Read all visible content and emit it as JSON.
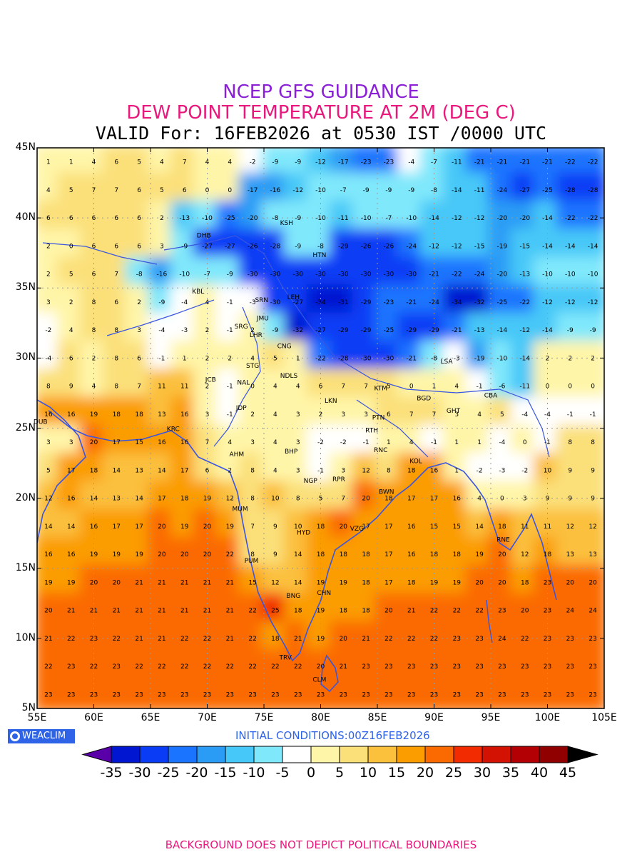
{
  "header": {
    "line1": "NCEP GFS GUIDANCE",
    "line2": "DEW POINT TEMPERATURE AT 2M (DEG C)",
    "line3": "VALID For: 16FEB2026 at 0530 IST /0000 UTC"
  },
  "axes": {
    "y_labels": [
      "45N",
      "40N",
      "35N",
      "30N",
      "25N",
      "20N",
      "15N",
      "10N",
      "5N"
    ],
    "x_labels": [
      "55E",
      "60E",
      "65E",
      "70E",
      "75E",
      "80E",
      "85E",
      "90E",
      "95E",
      "100E",
      "105E"
    ],
    "lon_range": [
      55,
      105
    ],
    "lat_range": [
      5,
      45
    ]
  },
  "footer": {
    "logo_text": "WEACLIM",
    "initial_conditions": "INITIAL CONDITIONS:00Z16FEB2026",
    "disclaimer": "BACKGROUND DOES NOT DEPICT POLITICAL BOUNDARIES"
  },
  "colorbar": {
    "labels": [
      "-35",
      "-30",
      "-25",
      "-20",
      "-15",
      "-10",
      "-5",
      "0",
      "5",
      "10",
      "15",
      "20",
      "25",
      "30",
      "35",
      "40",
      "45"
    ],
    "colors": [
      "#5a00a8",
      "#0016d0",
      "#0a3cf5",
      "#1a74ff",
      "#2a9cf5",
      "#46c8f8",
      "#80e8fb",
      "#ffffff",
      "#fff5a8",
      "#fbe07a",
      "#fbc03c",
      "#fb9c00",
      "#fb6a00",
      "#f22c00",
      "#d31204",
      "#b20004",
      "#900000",
      "#000000"
    ]
  },
  "color_scale": {
    "stops": [
      -35,
      -30,
      -25,
      -20,
      -15,
      -10,
      -5,
      0,
      5,
      10,
      15,
      20,
      25,
      30,
      35,
      40,
      45
    ]
  },
  "cities": [
    {
      "code": "KSH",
      "lon": 77.0,
      "lat": 39.5
    },
    {
      "code": "DHB",
      "lon": 69.7,
      "lat": 38.6
    },
    {
      "code": "HTN",
      "lon": 79.9,
      "lat": 37.2
    },
    {
      "code": "KBL",
      "lon": 69.2,
      "lat": 34.6
    },
    {
      "code": "SRN",
      "lon": 74.8,
      "lat": 34.0
    },
    {
      "code": "LEH",
      "lon": 77.6,
      "lat": 34.2
    },
    {
      "code": "JMU",
      "lon": 74.9,
      "lat": 32.7
    },
    {
      "code": "SRG",
      "lon": 73.0,
      "lat": 32.1
    },
    {
      "code": "LHR",
      "lon": 74.3,
      "lat": 31.5
    },
    {
      "code": "CNG",
      "lon": 76.8,
      "lat": 30.7
    },
    {
      "code": "STG",
      "lon": 74.0,
      "lat": 29.3
    },
    {
      "code": "JCB",
      "lon": 70.3,
      "lat": 28.3
    },
    {
      "code": "NAL",
      "lon": 73.2,
      "lat": 28.1
    },
    {
      "code": "NDLS",
      "lon": 77.2,
      "lat": 28.6
    },
    {
      "code": "LSA",
      "lon": 91.1,
      "lat": 29.6
    },
    {
      "code": "KTM",
      "lon": 85.3,
      "lat": 27.7
    },
    {
      "code": "LKN",
      "lon": 80.9,
      "lat": 26.8
    },
    {
      "code": "JDP",
      "lon": 73.0,
      "lat": 26.3
    },
    {
      "code": "BGD",
      "lon": 89.1,
      "lat": 27.0
    },
    {
      "code": "CBA",
      "lon": 95.0,
      "lat": 27.2
    },
    {
      "code": "GHT",
      "lon": 91.7,
      "lat": 26.1
    },
    {
      "code": "PTN",
      "lon": 85.1,
      "lat": 25.6
    },
    {
      "code": "DUB",
      "lon": 55.3,
      "lat": 25.3
    },
    {
      "code": "KRC",
      "lon": 67.0,
      "lat": 24.8
    },
    {
      "code": "RTH",
      "lon": 84.5,
      "lat": 24.7
    },
    {
      "code": "BHP",
      "lon": 77.4,
      "lat": 23.2
    },
    {
      "code": "AHM",
      "lon": 72.6,
      "lat": 23.0
    },
    {
      "code": "RNC",
      "lon": 85.3,
      "lat": 23.3
    },
    {
      "code": "KOL",
      "lon": 88.4,
      "lat": 22.5
    },
    {
      "code": "NGP",
      "lon": 79.1,
      "lat": 21.1
    },
    {
      "code": "RPR",
      "lon": 81.6,
      "lat": 21.2
    },
    {
      "code": "BWN",
      "lon": 85.8,
      "lat": 20.3
    },
    {
      "code": "MUM",
      "lon": 72.9,
      "lat": 19.1
    },
    {
      "code": "HYD",
      "lon": 78.5,
      "lat": 17.4
    },
    {
      "code": "VZG",
      "lon": 83.2,
      "lat": 17.7
    },
    {
      "code": "RNE",
      "lon": 96.1,
      "lat": 16.9
    },
    {
      "code": "PUM",
      "lon": 73.9,
      "lat": 15.4
    },
    {
      "code": "CHN",
      "lon": 80.3,
      "lat": 13.1
    },
    {
      "code": "BNG",
      "lon": 77.6,
      "lat": 12.9
    },
    {
      "code": "TRV",
      "lon": 76.9,
      "lat": 8.5
    },
    {
      "code": "CLM",
      "lon": 79.9,
      "lat": 6.9
    }
  ],
  "grid_values": {
    "lats": [
      44,
      42,
      40,
      38,
      36,
      34,
      32,
      30,
      28,
      26,
      24,
      22,
      20,
      18,
      16,
      14,
      12,
      10,
      8,
      6
    ],
    "lons": [
      56,
      58,
      60,
      62,
      64,
      66,
      68,
      70,
      72,
      74,
      76,
      78,
      80,
      82,
      84,
      86,
      88,
      90,
      92,
      94,
      96,
      98,
      100,
      102,
      104
    ],
    "rows": [
      [
        1,
        1,
        4,
        6,
        5,
        4,
        7,
        4,
        4,
        -2,
        -9,
        -9,
        -12,
        -17,
        -23,
        -23,
        -4,
        -7,
        -11,
        -21,
        -21,
        -21,
        -21,
        -22,
        -22
      ],
      [
        4,
        5,
        7,
        7,
        6,
        5,
        6,
        0,
        0,
        -17,
        -16,
        -12,
        -10,
        -7,
        -9,
        -9,
        -9,
        -8,
        -14,
        -11,
        -24,
        -27,
        -25,
        -28,
        -28
      ],
      [
        6,
        6,
        6,
        6,
        6,
        2,
        -13,
        -10,
        -25,
        -20,
        -8,
        -9,
        -10,
        -11,
        -10,
        -7,
        -10,
        -14,
        -12,
        -12,
        -20,
        -20,
        -14,
        -22,
        -22
      ],
      [
        2,
        0,
        6,
        6,
        6,
        3,
        -9,
        -27,
        -27,
        -26,
        -28,
        -9,
        -8,
        -29,
        -26,
        -26,
        -24,
        -12,
        -12,
        -15,
        -19,
        -15,
        -14,
        -14,
        -14
      ],
      [
        2,
        5,
        6,
        7,
        -8,
        -16,
        -10,
        -7,
        -9,
        -30,
        -30,
        -30,
        -30,
        -30,
        -30,
        -30,
        -30,
        -21,
        -22,
        -24,
        -20,
        -13,
        -10,
        -10,
        -10
      ],
      [
        3,
        2,
        8,
        6,
        2,
        -9,
        -4,
        4,
        -1,
        -3,
        -30,
        -27,
        -34,
        -31,
        -29,
        -23,
        -21,
        -24,
        -34,
        -32,
        -25,
        -22,
        -12,
        -12,
        -12
      ],
      [
        -2,
        4,
        8,
        8,
        3,
        -4,
        -3,
        2,
        -1,
        2,
        -9,
        -32,
        -27,
        -29,
        -29,
        -25,
        -29,
        -29,
        -21,
        -13,
        -14,
        -12,
        -14,
        -9,
        -9
      ],
      [
        -4,
        6,
        2,
        8,
        6,
        -1,
        1,
        2,
        2,
        4,
        5,
        1,
        -22,
        -28,
        -30,
        -30,
        -21,
        -8,
        -3,
        -19,
        -10,
        -14,
        2,
        2,
        2
      ],
      [
        8,
        9,
        4,
        8,
        7,
        11,
        11,
        2,
        -1,
        0,
        4,
        4,
        6,
        7,
        7,
        5,
        0,
        1,
        4,
        -1,
        -6,
        -11,
        0,
        0,
        0
      ],
      [
        16,
        16,
        19,
        18,
        18,
        13,
        16,
        3,
        -1,
        2,
        4,
        3,
        2,
        3,
        3,
        6,
        7,
        7,
        3,
        4,
        5,
        -4,
        -4,
        -1,
        -1
      ],
      [
        3,
        3,
        20,
        17,
        15,
        16,
        16,
        7,
        4,
        3,
        4,
        3,
        -2,
        -2,
        -1,
        1,
        4,
        -1,
        1,
        1,
        -4,
        0,
        -1,
        8,
        8
      ],
      [
        5,
        17,
        18,
        14,
        13,
        14,
        17,
        6,
        2,
        8,
        4,
        3,
        -1,
        3,
        12,
        8,
        18,
        16,
        1,
        -2,
        -3,
        -2,
        10,
        9,
        9
      ],
      [
        12,
        16,
        14,
        13,
        14,
        17,
        18,
        19,
        12,
        8,
        10,
        8,
        5,
        7,
        20,
        18,
        17,
        17,
        16,
        4,
        0,
        3,
        9,
        9,
        9
      ],
      [
        14,
        14,
        16,
        17,
        17,
        20,
        19,
        20,
        19,
        7,
        9,
        10,
        18,
        20,
        17,
        17,
        16,
        15,
        15,
        14,
        18,
        11,
        11,
        12,
        12
      ],
      [
        16,
        16,
        19,
        19,
        19,
        20,
        20,
        20,
        22,
        8,
        9,
        14,
        18,
        18,
        18,
        17,
        16,
        18,
        18,
        19,
        20,
        12,
        18,
        13,
        13
      ],
      [
        19,
        19,
        20,
        20,
        21,
        21,
        21,
        21,
        21,
        15,
        12,
        14,
        19,
        19,
        18,
        17,
        18,
        19,
        19,
        20,
        20,
        18,
        23,
        20,
        20
      ],
      [
        20,
        21,
        21,
        21,
        21,
        21,
        21,
        21,
        21,
        22,
        25,
        18,
        19,
        18,
        18,
        20,
        21,
        22,
        22,
        22,
        23,
        20,
        23,
        24,
        24
      ],
      [
        21,
        22,
        23,
        22,
        21,
        21,
        22,
        22,
        21,
        22,
        18,
        21,
        19,
        20,
        21,
        22,
        22,
        22,
        23,
        23,
        24,
        22,
        23,
        23,
        23
      ],
      [
        22,
        23,
        22,
        23,
        22,
        22,
        22,
        22,
        22,
        22,
        22,
        22,
        20,
        21,
        23,
        23,
        23,
        23,
        23,
        23,
        23,
        23,
        23,
        23,
        23
      ],
      [
        23,
        23,
        23,
        23,
        23,
        23,
        23,
        23,
        23,
        23,
        23,
        23,
        23,
        23,
        23,
        23,
        23,
        23,
        23,
        23,
        23,
        23,
        23,
        23,
        23
      ]
    ]
  }
}
